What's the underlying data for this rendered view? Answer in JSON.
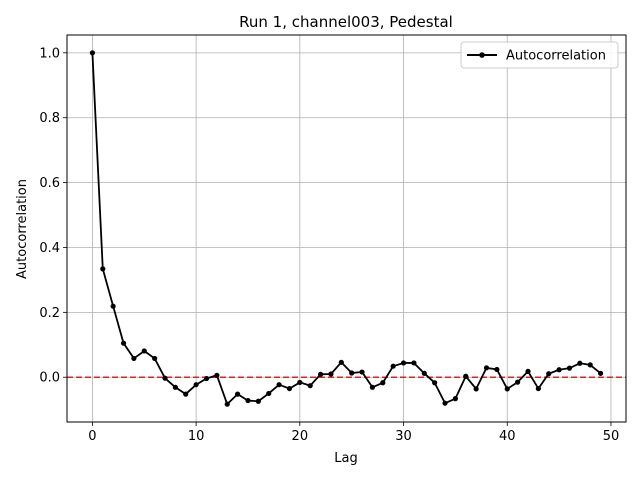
{
  "chart_data": {
    "type": "line",
    "title": "Run 1, channel003, Pedestal",
    "xlabel": "Lag",
    "ylabel": "Autocorrelation",
    "xlim": [
      -2.45,
      51.45
    ],
    "ylim": [
      -0.138,
      1.055
    ],
    "xticks": [
      0,
      10,
      20,
      30,
      40,
      50
    ],
    "yticks": [
      0.0,
      0.2,
      0.4,
      0.6,
      0.8,
      1.0
    ],
    "xtick_labels": [
      "0",
      "10",
      "20",
      "30",
      "40",
      "50"
    ],
    "ytick_labels": [
      "0.0",
      "0.2",
      "0.4",
      "0.6",
      "0.8",
      "1.0"
    ],
    "grid": true,
    "legend_position": "top-right",
    "reference_line": {
      "y": 0.0,
      "color": "#d62728",
      "style": "dashed"
    },
    "series": [
      {
        "name": "Autocorrelation",
        "color": "#000000",
        "marker": "circle",
        "x": [
          0,
          1,
          2,
          3,
          4,
          5,
          6,
          7,
          8,
          9,
          10,
          11,
          12,
          13,
          14,
          15,
          16,
          17,
          18,
          19,
          20,
          21,
          22,
          23,
          24,
          25,
          26,
          27,
          28,
          29,
          30,
          31,
          32,
          33,
          34,
          35,
          36,
          37,
          38,
          39,
          40,
          41,
          42,
          43,
          44,
          45,
          46,
          47,
          48,
          49
        ],
        "values": [
          1.0,
          0.334,
          0.219,
          0.105,
          0.058,
          0.081,
          0.058,
          -0.003,
          -0.031,
          -0.052,
          -0.023,
          -0.004,
          0.006,
          -0.083,
          -0.052,
          -0.072,
          -0.074,
          -0.05,
          -0.023,
          -0.035,
          -0.016,
          -0.026,
          0.009,
          0.01,
          0.046,
          0.013,
          0.016,
          -0.031,
          -0.017,
          0.034,
          0.044,
          0.044,
          0.012,
          -0.017,
          -0.08,
          -0.066,
          0.003,
          -0.036,
          0.029,
          0.024,
          -0.036,
          -0.015,
          0.018,
          -0.035,
          0.011,
          0.023,
          0.028,
          0.043,
          0.038,
          0.012
        ]
      }
    ]
  }
}
